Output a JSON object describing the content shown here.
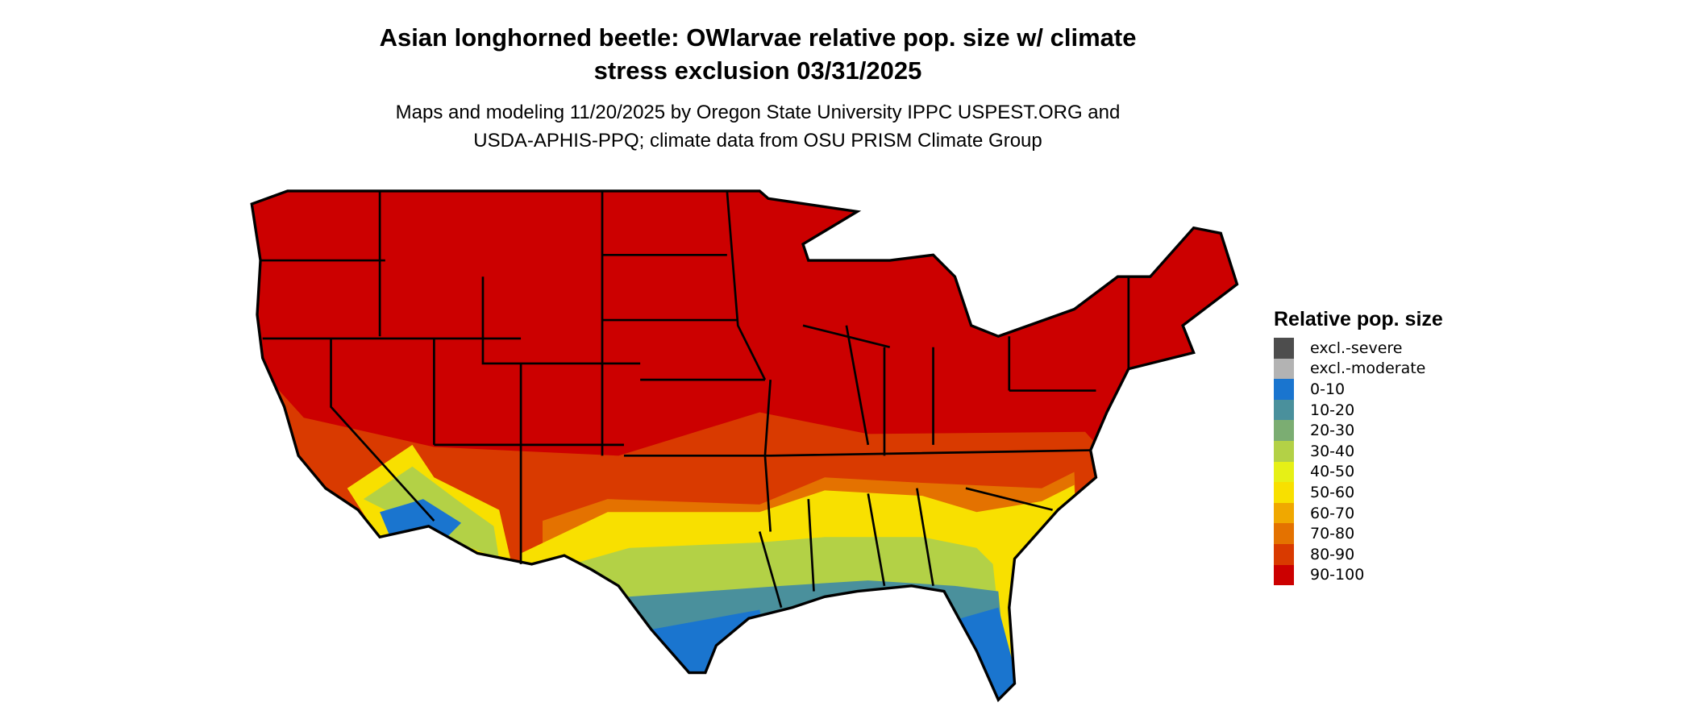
{
  "title": {
    "line1": "Asian longhorned beetle: OWlarvae relative pop. size w/ climate",
    "line2": "stress exclusion 03/31/2025"
  },
  "subtitle": {
    "line1": "Maps and modeling 11/20/2025 by Oregon State University IPPC USPEST.ORG and",
    "line2": "USDA-APHIS-PPQ; climate data from OSU PRISM Climate Group"
  },
  "map": {
    "region": "Contiguous United States",
    "dominant_category": "90-100"
  },
  "legend": {
    "title": "Relative pop. size",
    "items": [
      {
        "label": "excl.-severe",
        "color": "#4d4d4d"
      },
      {
        "label": "excl.-moderate",
        "color": "#b3b3b3"
      },
      {
        "label": "0-10",
        "color": "#1a75cf"
      },
      {
        "label": "10-20",
        "color": "#4a909c"
      },
      {
        "label": "20-30",
        "color": "#7bad72"
      },
      {
        "label": "30-40",
        "color": "#b3d146"
      },
      {
        "label": "40-50",
        "color": "#e6f016"
      },
      {
        "label": "50-60",
        "color": "#f8e000"
      },
      {
        "label": "60-70",
        "color": "#f0a800"
      },
      {
        "label": "70-80",
        "color": "#e47200"
      },
      {
        "label": "80-90",
        "color": "#d93a00"
      },
      {
        "label": "90-100",
        "color": "#cc0000"
      }
    ]
  }
}
